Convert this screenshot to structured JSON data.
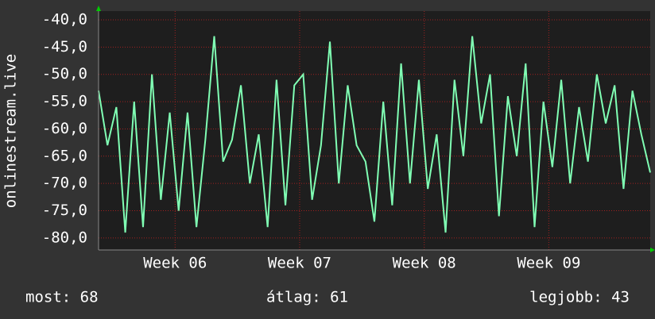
{
  "chart_data": {
    "type": "line",
    "ylabel": "onlinestream.live",
    "x": [
      0,
      0.5,
      1,
      1.5,
      2,
      2.5,
      3,
      3.5,
      4,
      4.5,
      5,
      5.5,
      6,
      6.5,
      7,
      7.5,
      8,
      8.5,
      9,
      9.5,
      10,
      10.5,
      11,
      11.5,
      12,
      12.5,
      13,
      13.5,
      14,
      14.5,
      15,
      15.5,
      16,
      16.5,
      17,
      17.5,
      18,
      18.5,
      19,
      19.5,
      20,
      20.5,
      21,
      21.5,
      22,
      22.5,
      23,
      23.5,
      24,
      24.5,
      25,
      25.5,
      26,
      26.5,
      27,
      27.5,
      28,
      28.5,
      29,
      29.5,
      30,
      30.5,
      31
    ],
    "series": [
      {
        "name": "onlinestream.live",
        "color": "#80ffb4",
        "values": [
          -53,
          -63,
          -56,
          -79,
          -55,
          -78,
          -50,
          -73,
          -57,
          -75,
          -57,
          -78,
          -62,
          -43,
          -66,
          -62,
          -52,
          -70,
          -61,
          -78,
          -51,
          -74,
          -52,
          -50,
          -73,
          -63,
          -44,
          -70,
          -52,
          -63,
          -66,
          -77,
          -55,
          -74,
          -48,
          -70,
          -51,
          -71,
          -61,
          -79,
          -51,
          -65,
          -43,
          -59,
          -50,
          -76,
          -54,
          -65,
          -48,
          -78,
          -55,
          -67,
          -51,
          -70,
          -56,
          -66,
          -50,
          -59,
          -52,
          -71,
          -53,
          -61,
          -68
        ]
      }
    ],
    "xlim": [
      0,
      31
    ],
    "xticks": [
      {
        "value": 4.3,
        "label": "Week 06"
      },
      {
        "value": 11.3,
        "label": "Week 07"
      },
      {
        "value": 18.3,
        "label": "Week 08"
      },
      {
        "value": 25.3,
        "label": "Week 09"
      }
    ],
    "ylim": [
      -82.2,
      -38.4
    ],
    "yticks": [
      {
        "value": -40,
        "label": "-40,0"
      },
      {
        "value": -45,
        "label": "-45,0"
      },
      {
        "value": -50,
        "label": "-50,0"
      },
      {
        "value": -55,
        "label": "-55,0"
      },
      {
        "value": -60,
        "label": "-60,0"
      },
      {
        "value": -65,
        "label": "-65,0"
      },
      {
        "value": -70,
        "label": "-70,0"
      },
      {
        "value": -75,
        "label": "-75,0"
      },
      {
        "value": -80,
        "label": "-80,0"
      }
    ],
    "grid": true,
    "legend_items": [
      "most: 68",
      "átlag: 61",
      "legjobb: 43"
    ]
  }
}
